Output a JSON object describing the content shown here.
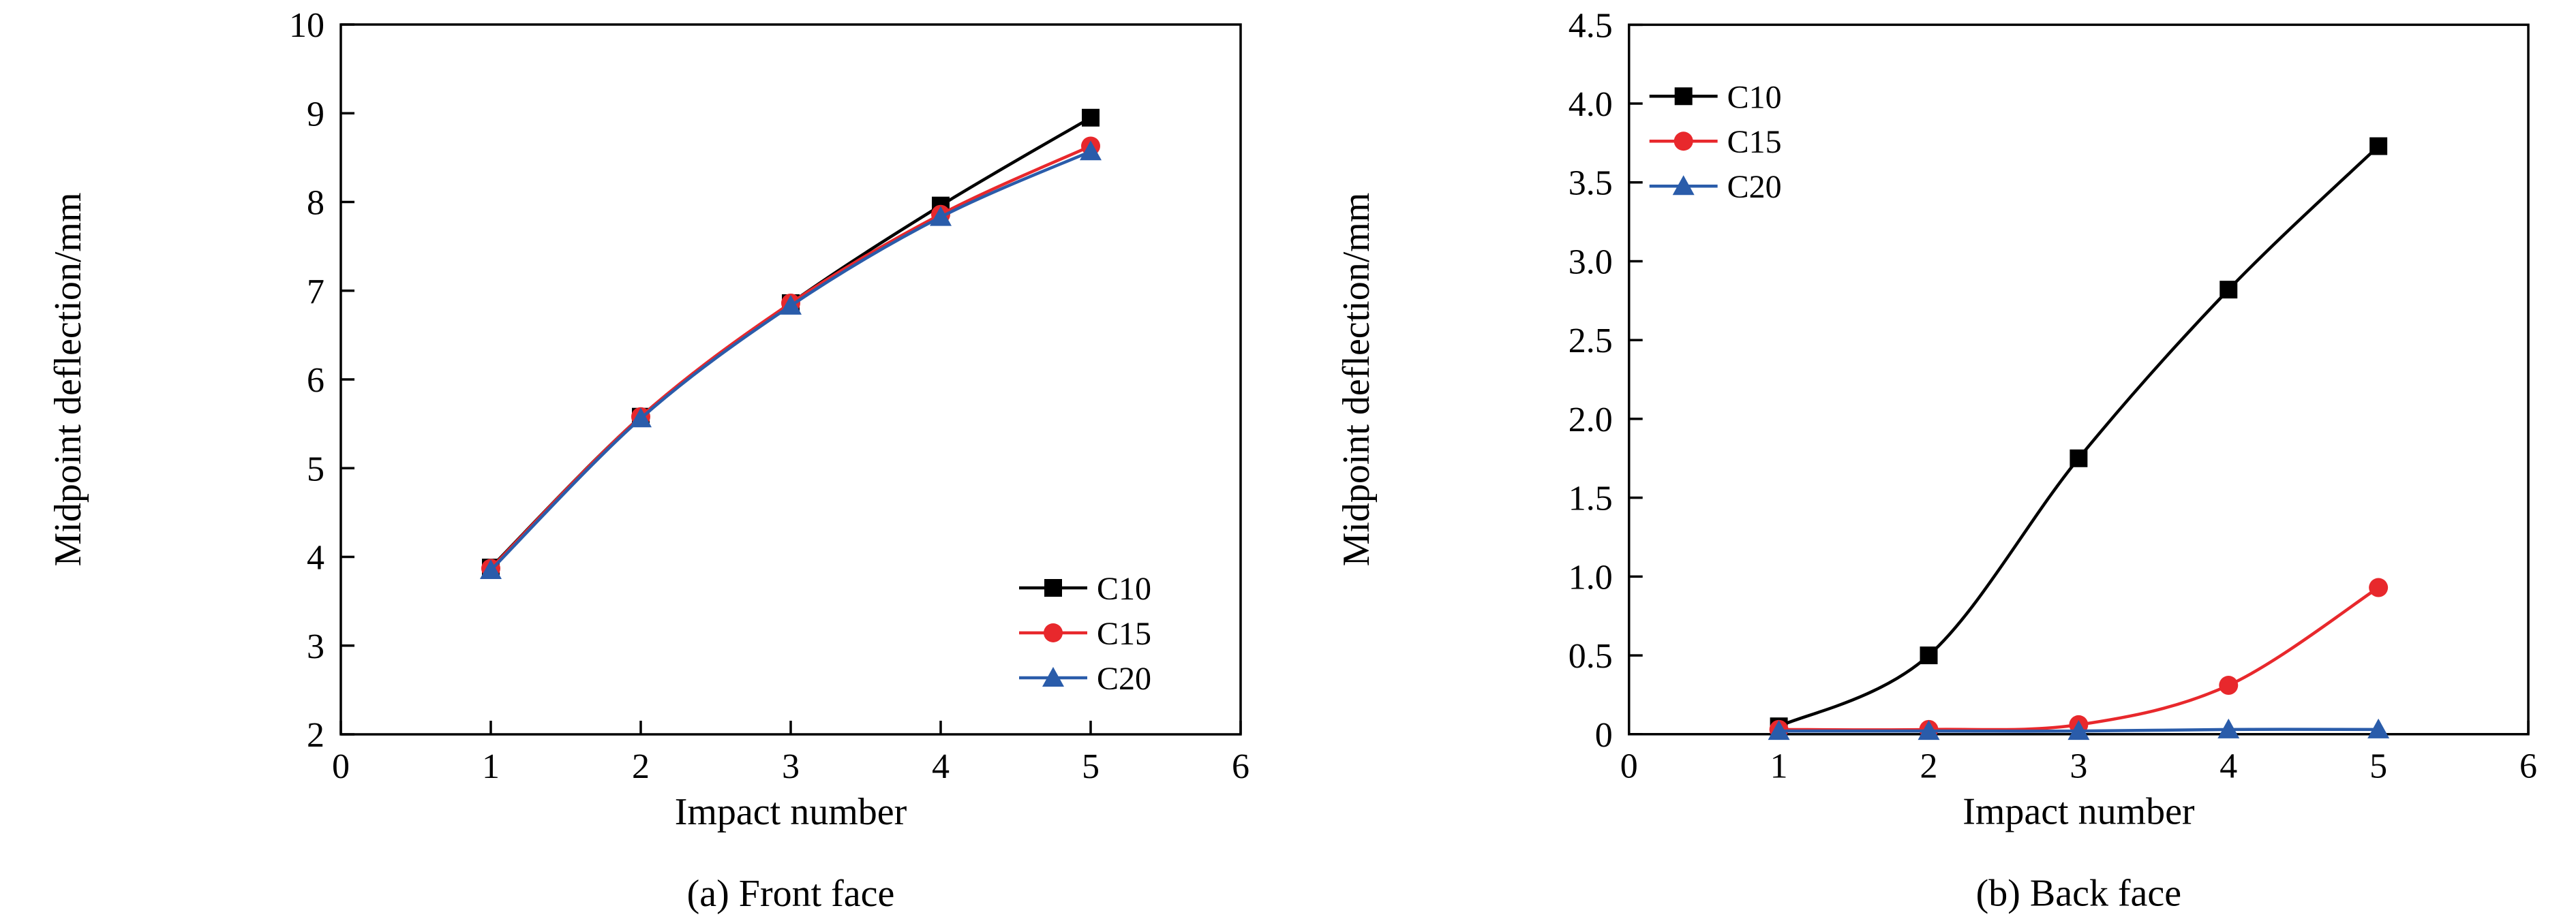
{
  "figure": {
    "background": "#ffffff",
    "frame_color": "#000000",
    "text_color": "#000000"
  },
  "chart_data": [
    {
      "type": "line",
      "caption": "(a) Front face",
      "xlabel": "Impact number",
      "ylabel": "Midpoint deflection/mm",
      "xlim": [
        0,
        6
      ],
      "ylim": [
        2,
        10
      ],
      "xticks": [
        0,
        1,
        2,
        3,
        4,
        5,
        6
      ],
      "xtick_labels": [
        "0",
        "1",
        "2",
        "3",
        "4",
        "5",
        "6"
      ],
      "yticks": [
        2,
        3,
        4,
        5,
        6,
        7,
        8,
        9,
        10
      ],
      "ytick_labels": [
        "2",
        "3",
        "4",
        "5",
        "6",
        "7",
        "8",
        "9",
        "10"
      ],
      "grid": false,
      "legend_position": "bottom-right",
      "x": [
        1,
        2,
        3,
        4,
        5
      ],
      "series": [
        {
          "name": "C10",
          "color": "#000000",
          "marker": "square",
          "values": [
            3.88,
            5.58,
            6.86,
            7.96,
            8.95
          ]
        },
        {
          "name": "C15",
          "color": "#e8282c",
          "marker": "circle",
          "values": [
            3.87,
            5.58,
            6.86,
            7.86,
            8.63
          ]
        },
        {
          "name": "C20",
          "color": "#2a5caa",
          "marker": "triangle",
          "values": [
            3.85,
            5.56,
            6.83,
            7.83,
            8.57
          ]
        }
      ]
    },
    {
      "type": "line",
      "caption": "(b) Back face",
      "xlabel": "Impact number",
      "ylabel": "Midpoint deflection/mm",
      "xlim": [
        0,
        6
      ],
      "ylim": [
        0,
        4.5
      ],
      "xticks": [
        0,
        1,
        2,
        3,
        4,
        5,
        6
      ],
      "xtick_labels": [
        "0",
        "1",
        "2",
        "3",
        "4",
        "5",
        "6"
      ],
      "yticks": [
        0,
        0.5,
        1.0,
        1.5,
        2.0,
        2.5,
        3.0,
        3.5,
        4.0,
        4.5
      ],
      "ytick_labels": [
        "0",
        "0.5",
        "1.0",
        "1.5",
        "2.0",
        "2.5",
        "3.0",
        "3.5",
        "4.0",
        "4.5"
      ],
      "grid": false,
      "legend_position": "top-left",
      "x": [
        1,
        2,
        3,
        4,
        5
      ],
      "series": [
        {
          "name": "C10",
          "color": "#000000",
          "marker": "square",
          "values": [
            0.05,
            0.5,
            1.75,
            2.82,
            3.73
          ]
        },
        {
          "name": "C15",
          "color": "#e8282c",
          "marker": "circle",
          "values": [
            0.03,
            0.03,
            0.06,
            0.31,
            0.93
          ]
        },
        {
          "name": "C20",
          "color": "#2a5caa",
          "marker": "triangle",
          "values": [
            0.02,
            0.02,
            0.02,
            0.03,
            0.03
          ]
        }
      ]
    }
  ]
}
